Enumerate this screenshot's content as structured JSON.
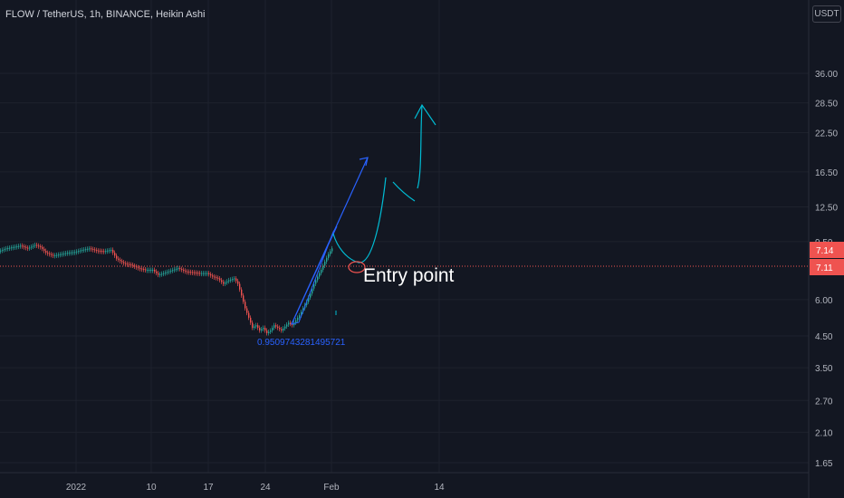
{
  "header": {
    "title": "FLOW / TetherUS, 1h, BINANCE, Heikin Ashi",
    "currency": "USDT"
  },
  "colors": {
    "background": "#131722",
    "up": "#26a69a",
    "down": "#ef5350",
    "axis_text": "#b2b5be",
    "grid": "#1e222d",
    "price_line": "#ef5350",
    "drawing_blue": "#2962ff",
    "drawing_cyan": "#00bcd4"
  },
  "chart_data": {
    "type": "candlestick",
    "y_scale": "log",
    "y_ticks": [
      "36.00",
      "28.50",
      "22.50",
      "16.50",
      "12.50",
      "9.50",
      "7.14",
      "7.11",
      "6.00",
      "4.50",
      "3.50",
      "2.70",
      "2.10",
      "1.65"
    ],
    "x_ticks": [
      "2022",
      "10",
      "17",
      "24",
      "Feb",
      "14"
    ],
    "price_labels": [
      {
        "value": 7.14,
        "label": "7.14",
        "color": "#ef5350"
      },
      {
        "value": 7.11,
        "label": "7.11",
        "color": "#ef5350"
      }
    ],
    "annotations": [
      {
        "text": "Entry point",
        "color": "#ffffff"
      },
      {
        "text": "0.9509743281495721",
        "color": "#2962ff"
      }
    ],
    "series": [
      {
        "points": [
          [
            0,
            8.8
          ],
          [
            8,
            9.0
          ],
          [
            16,
            9.1
          ],
          [
            24,
            9.2
          ],
          [
            32,
            9.0
          ],
          [
            40,
            9.25
          ],
          [
            46,
            9.1
          ],
          [
            52,
            8.7
          ],
          [
            60,
            8.5
          ],
          [
            68,
            8.6
          ],
          [
            76,
            8.7
          ],
          [
            84,
            8.75
          ],
          [
            92,
            8.9
          ],
          [
            100,
            9.0
          ],
          [
            108,
            8.85
          ],
          [
            116,
            8.8
          ],
          [
            124,
            8.9
          ],
          [
            130,
            8.3
          ],
          [
            138,
            8.0
          ],
          [
            146,
            7.9
          ],
          [
            154,
            7.7
          ],
          [
            162,
            7.6
          ],
          [
            170,
            7.6
          ],
          [
            176,
            7.3
          ],
          [
            182,
            7.4
          ],
          [
            190,
            7.55
          ],
          [
            198,
            7.7
          ],
          [
            206,
            7.5
          ],
          [
            214,
            7.45
          ],
          [
            222,
            7.4
          ],
          [
            230,
            7.4
          ],
          [
            236,
            7.2
          ],
          [
            242,
            7.1
          ],
          [
            248,
            6.8
          ],
          [
            254,
            7.0
          ],
          [
            260,
            7.1
          ],
          [
            264,
            6.8
          ],
          [
            268,
            6.2
          ],
          [
            272,
            5.6
          ],
          [
            276,
            5.2
          ],
          [
            280,
            4.8
          ],
          [
            284,
            4.9
          ],
          [
            288,
            4.7
          ],
          [
            292,
            4.8
          ],
          [
            296,
            4.6
          ],
          [
            300,
            4.7
          ],
          [
            304,
            4.9
          ],
          [
            308,
            4.8
          ],
          [
            312,
            4.7
          ],
          [
            316,
            4.85
          ],
          [
            320,
            5.0
          ],
          [
            324,
            4.9
          ],
          [
            328,
            5.1
          ],
          [
            332,
            5.3
          ],
          [
            336,
            5.6
          ],
          [
            340,
            5.9
          ],
          [
            344,
            6.3
          ],
          [
            348,
            6.8
          ],
          [
            352,
            7.2
          ],
          [
            356,
            7.6
          ],
          [
            360,
            8.1
          ],
          [
            364,
            8.6
          ],
          [
            368,
            9.0
          ]
        ]
      }
    ]
  }
}
